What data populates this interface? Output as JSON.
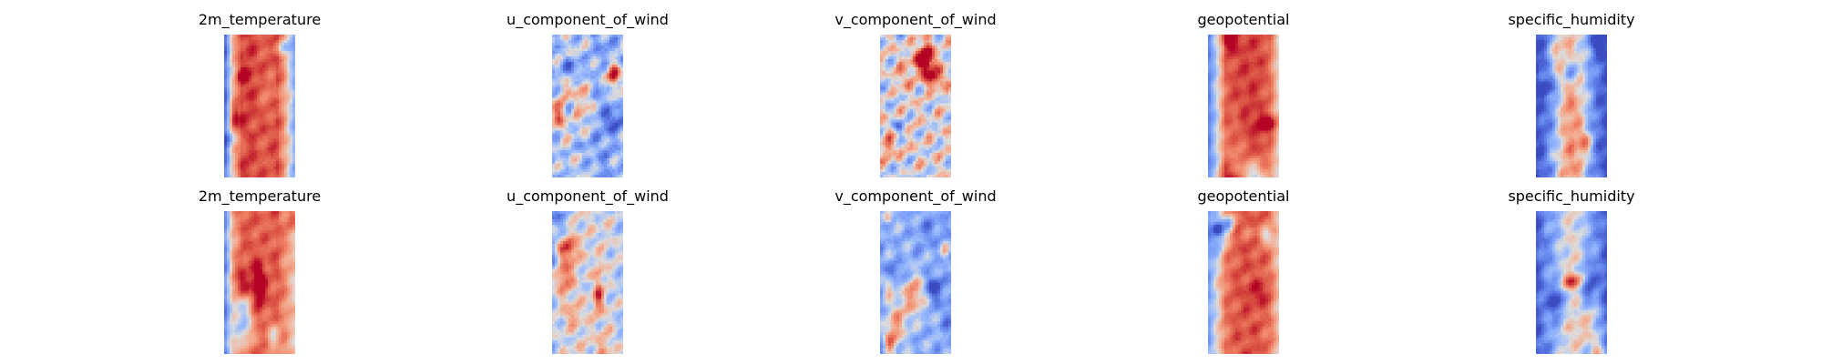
{
  "chart_data": [
    {
      "type": "heatmap",
      "title": "2m_temperature",
      "row": 1,
      "colormap": "coolwarm",
      "profile": [
        0.05,
        0.6,
        0.9,
        0.9,
        0.85,
        0.85,
        0.88,
        0.62,
        0.3
      ],
      "noise": 0.12,
      "blobs": 6,
      "seed": 11
    },
    {
      "type": "heatmap",
      "title": "u_component_of_wind",
      "row": 1,
      "colormap": "coolwarm",
      "profile": [
        0.35,
        0.4,
        0.45,
        0.42,
        0.4,
        0.3,
        0.28,
        0.32,
        0.38
      ],
      "noise": 0.28,
      "blobs": 10,
      "seed": 23
    },
    {
      "type": "heatmap",
      "title": "v_component_of_wind",
      "row": 1,
      "colormap": "coolwarm",
      "profile": [
        0.5,
        0.52,
        0.5,
        0.5,
        0.52,
        0.5,
        0.5,
        0.52,
        0.5
      ],
      "noise": 0.32,
      "blobs": 14,
      "seed": 37
    },
    {
      "type": "heatmap",
      "title": "geopotential",
      "row": 1,
      "colormap": "coolwarm",
      "profile": [
        0.15,
        0.45,
        0.82,
        0.88,
        0.9,
        0.9,
        0.88,
        0.8,
        0.5
      ],
      "noise": 0.1,
      "blobs": 6,
      "seed": 41
    },
    {
      "type": "heatmap",
      "title": "specific_humidity",
      "row": 1,
      "colormap": "coolwarm",
      "profile": [
        0.02,
        0.12,
        0.3,
        0.6,
        0.72,
        0.6,
        0.32,
        0.12,
        0.02
      ],
      "noise": 0.16,
      "blobs": 8,
      "seed": 53
    },
    {
      "type": "heatmap",
      "title": "2m_temperature",
      "row": 2,
      "colormap": "coolwarm",
      "profile": [
        0.15,
        0.65,
        0.82,
        0.85,
        0.82,
        0.82,
        0.85,
        0.7,
        0.55
      ],
      "noise": 0.12,
      "blobs": 6,
      "seed": 61
    },
    {
      "type": "heatmap",
      "title": "u_component_of_wind",
      "row": 2,
      "colormap": "coolwarm",
      "profile": [
        0.42,
        0.48,
        0.5,
        0.52,
        0.5,
        0.48,
        0.5,
        0.46,
        0.42
      ],
      "noise": 0.22,
      "blobs": 10,
      "seed": 71
    },
    {
      "type": "heatmap",
      "title": "v_component_of_wind",
      "row": 2,
      "colormap": "coolwarm",
      "profile": [
        0.3,
        0.32,
        0.34,
        0.33,
        0.32,
        0.33,
        0.34,
        0.32,
        0.3
      ],
      "noise": 0.2,
      "blobs": 12,
      "seed": 83
    },
    {
      "type": "heatmap",
      "title": "geopotential",
      "row": 2,
      "colormap": "coolwarm",
      "profile": [
        0.25,
        0.5,
        0.78,
        0.84,
        0.86,
        0.86,
        0.84,
        0.78,
        0.55
      ],
      "noise": 0.12,
      "blobs": 6,
      "seed": 97
    },
    {
      "type": "heatmap",
      "title": "specific_humidity",
      "row": 2,
      "colormap": "coolwarm",
      "profile": [
        0.05,
        0.2,
        0.3,
        0.45,
        0.52,
        0.45,
        0.3,
        0.2,
        0.05
      ],
      "noise": 0.16,
      "blobs": 8,
      "seed": 103
    }
  ]
}
